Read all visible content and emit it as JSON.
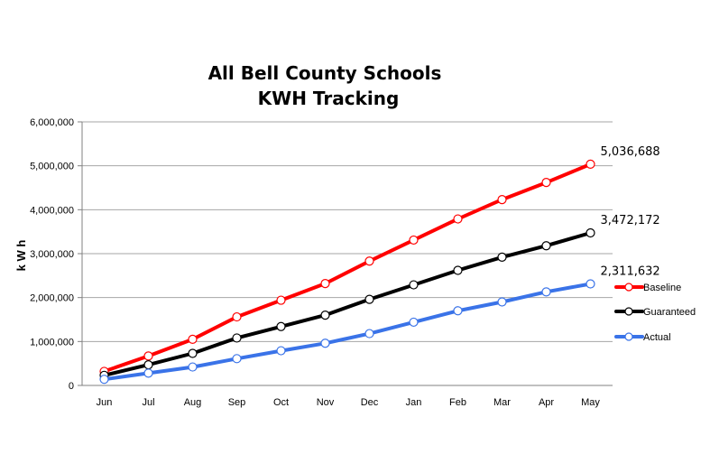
{
  "chart_data": {
    "type": "line",
    "title_lines": [
      "All Bell County Schools",
      "KWH Tracking"
    ],
    "ylabel": "k W h",
    "xlabel": "",
    "ylim": [
      0,
      6000000
    ],
    "yticks": [
      0,
      1000000,
      2000000,
      3000000,
      4000000,
      5000000,
      6000000
    ],
    "ytick_labels": [
      "0",
      "1,000,000",
      "2,000,000",
      "3,000,000",
      "4,000,000",
      "5,000,000",
      "6,000,000"
    ],
    "categories": [
      "Jun",
      "Jul",
      "Aug",
      "Sep",
      "Oct",
      "Nov",
      "Dec",
      "Jan",
      "Feb",
      "Mar",
      "Apr",
      "May"
    ],
    "grid": "horizontal",
    "legend_position": "right",
    "series": [
      {
        "name": "Baseline",
        "color": "#ff0000",
        "values": [
          320000,
          670000,
          1050000,
          1560000,
          1940000,
          2320000,
          2830000,
          3310000,
          3790000,
          4230000,
          4620000,
          5036688
        ],
        "end_label": "5,036,688"
      },
      {
        "name": "Guaranteed",
        "color": "#000000",
        "values": [
          230000,
          470000,
          730000,
          1080000,
          1340000,
          1600000,
          1960000,
          2290000,
          2620000,
          2920000,
          3180000,
          3472172
        ],
        "end_label": "3,472,172"
      },
      {
        "name": "Actual",
        "color": "#3a73e8",
        "values": [
          140000,
          280000,
          420000,
          610000,
          790000,
          960000,
          1180000,
          1440000,
          1700000,
          1900000,
          2130000,
          2311632
        ],
        "end_label": "2,311,632"
      }
    ]
  }
}
